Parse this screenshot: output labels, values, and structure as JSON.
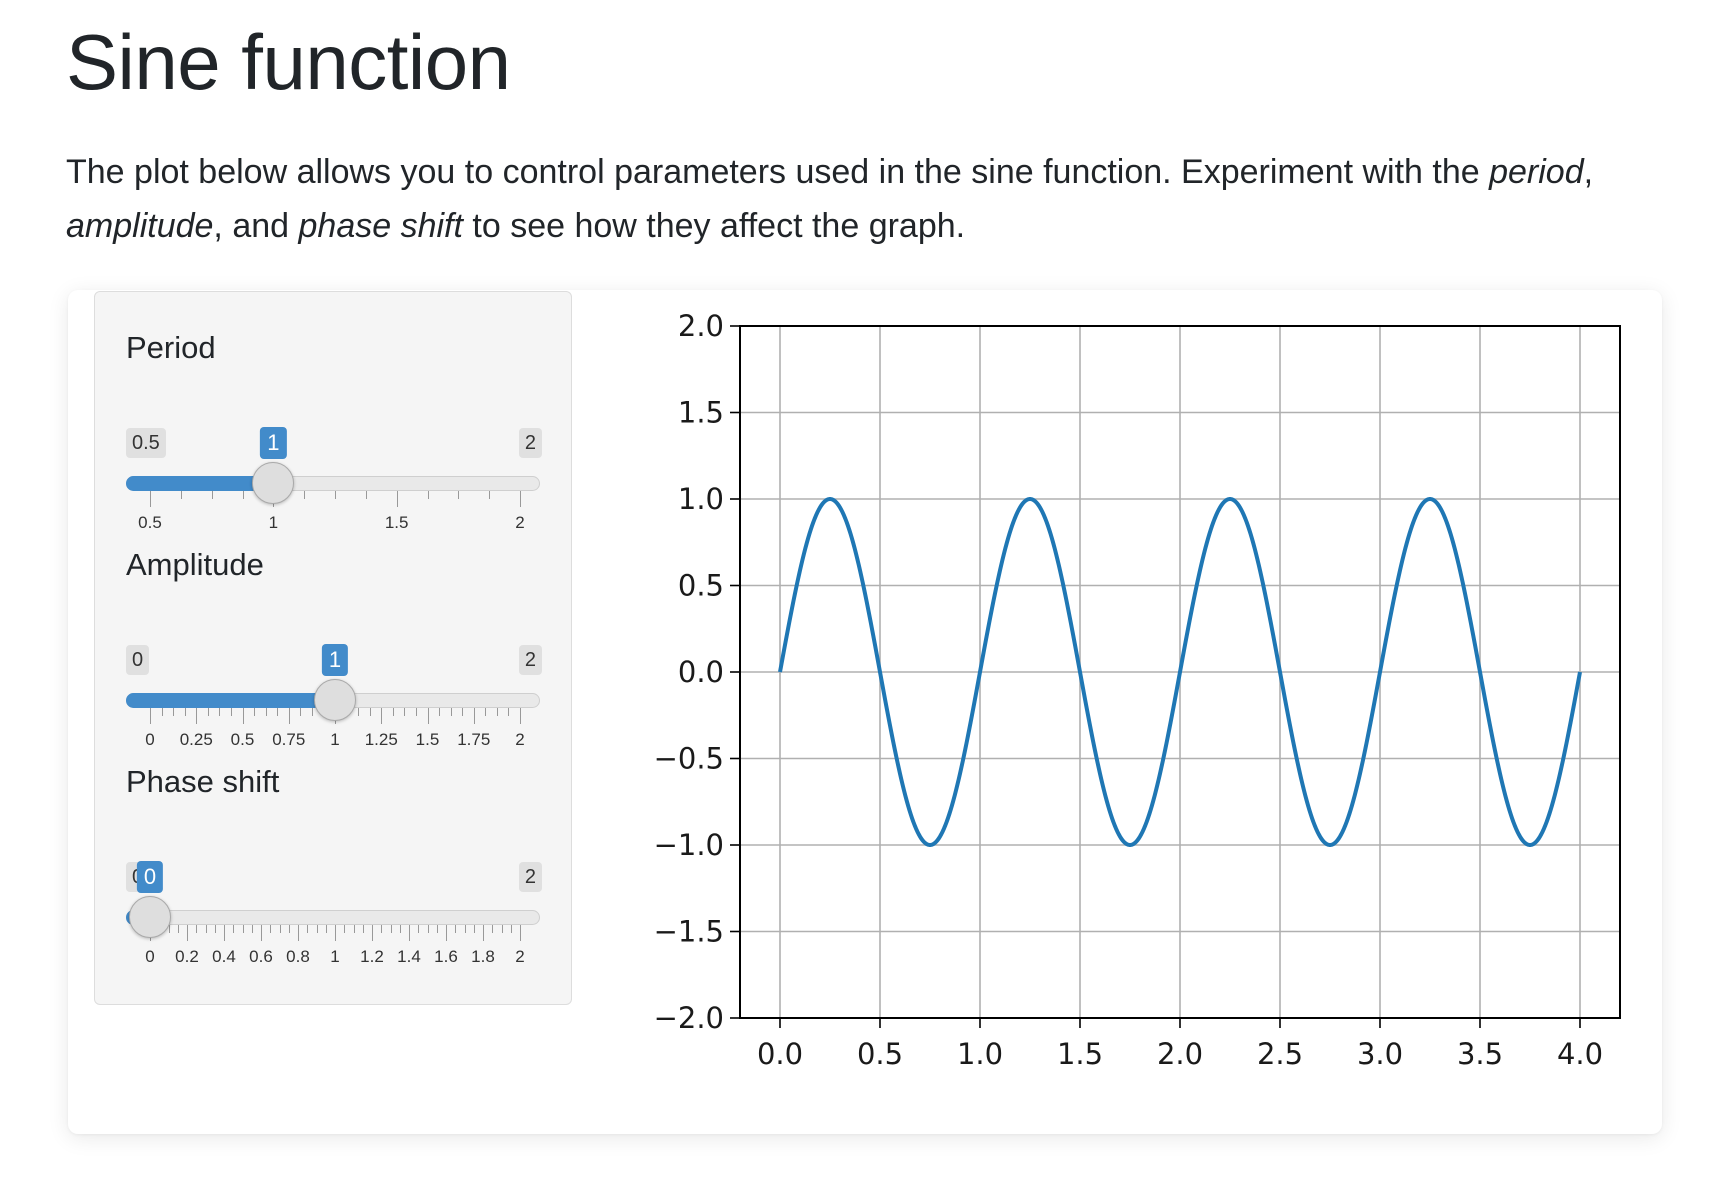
{
  "page": {
    "title": "Sine function",
    "intro": {
      "t1": "The plot below allows you to control parameters used in the sine function. Experiment with the ",
      "e1": "period",
      "t2": ", ",
      "e2": "amplitude",
      "t3": ", and ",
      "e3": "phase shift",
      "t4": " to see how they affect the graph."
    }
  },
  "controls": [
    {
      "id": "period",
      "label": "Period",
      "min": 0.5,
      "max": 2,
      "value": 1,
      "min_text": "0.5",
      "max_text": "2",
      "value_text": "1",
      "grid": [
        "0.5",
        "1",
        "1.5",
        "2"
      ],
      "grid_values": [
        0.5,
        1,
        1.5,
        2
      ]
    },
    {
      "id": "amplitude",
      "label": "Amplitude",
      "min": 0,
      "max": 2,
      "value": 1,
      "min_text": "0",
      "max_text": "2",
      "value_text": "1",
      "grid": [
        "0",
        "0.25",
        "0.5",
        "0.75",
        "1",
        "1.25",
        "1.5",
        "1.75",
        "2"
      ],
      "grid_values": [
        0,
        0.25,
        0.5,
        0.75,
        1,
        1.25,
        1.5,
        1.75,
        2
      ]
    },
    {
      "id": "phase-shift",
      "label": "Phase shift",
      "min": 0,
      "max": 2,
      "value": 0,
      "min_text": "0",
      "max_text": "2",
      "value_text": "0",
      "grid": [
        "0",
        "0.2",
        "0.4",
        "0.6",
        "0.8",
        "1",
        "1.2",
        "1.4",
        "1.6",
        "1.8",
        "2"
      ],
      "grid_values": [
        0,
        0.2,
        0.4,
        0.6,
        0.8,
        1,
        1.2,
        1.4,
        1.6,
        1.8,
        2
      ]
    }
  ],
  "chart_data": {
    "type": "line",
    "function": "sine",
    "x_range": [
      0,
      4
    ],
    "xlim": [
      -0.2,
      4.2
    ],
    "ylim": [
      -2,
      2
    ],
    "xticks": [
      "0.0",
      "0.5",
      "1.0",
      "1.5",
      "2.0",
      "2.5",
      "3.0",
      "3.5",
      "4.0"
    ],
    "xtick_values": [
      0,
      0.5,
      1,
      1.5,
      2,
      2.5,
      3,
      3.5,
      4
    ],
    "yticks": [
      "2.0",
      "1.5",
      "1.0",
      "0.5",
      "0.0",
      "−0.5",
      "−1.0",
      "−1.5",
      "−2.0"
    ],
    "ytick_values": [
      2,
      1.5,
      1,
      0.5,
      0,
      -0.5,
      -1,
      -1.5,
      -2
    ],
    "grid": true,
    "line_color": "#1f77b4",
    "period": 1,
    "amplitude": 1,
    "phase_shift": 0
  }
}
